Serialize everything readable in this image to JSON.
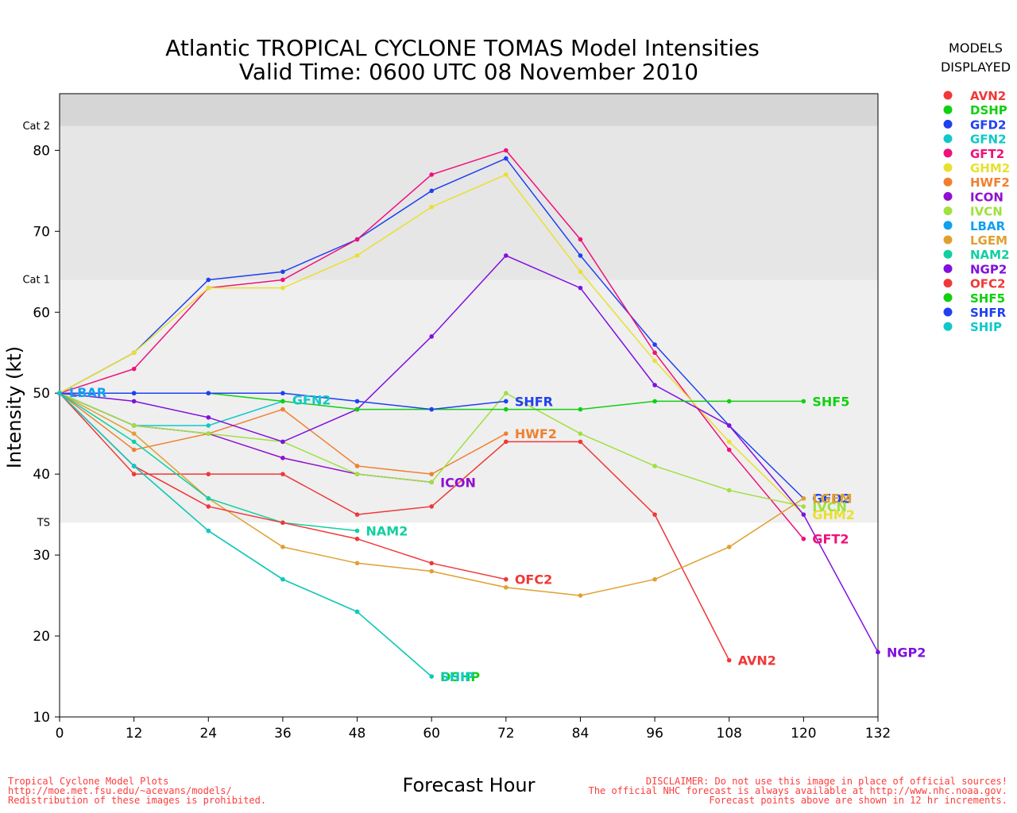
{
  "title_line1": "Atlantic TROPICAL CYCLONE TOMAS Model Intensities",
  "title_line2": "Valid Time: 0600 UTC 08 November 2010",
  "legend_title_1": "MODELS",
  "legend_title_2": "DISPLAYED",
  "footer_left": [
    "Tropical Cyclone Model Plots",
    "http://moe.met.fsu.edu/~acevans/models/",
    "Redistribution of these images is prohibited."
  ],
  "footer_right": [
    "DISCLAIMER: Do not use this image in place of official sources!",
    "The official NHC forecast is always available at http://www.nhc.noaa.gov.",
    "Forecast points above are shown in 12 hr increments."
  ],
  "colors": {
    "band_ts_cat1": "#efefef",
    "band_cat1_cat2": "#e6e6e6",
    "band_cat2": "#d6d6d6",
    "footer": "#ff3b3b"
  },
  "chart_data": {
    "type": "line",
    "xlabel": "Forecast Hour",
    "ylabel": "Intensity (kt)",
    "xlim": [
      0,
      132
    ],
    "ylim": [
      10,
      87
    ],
    "xticks": [
      0,
      12,
      24,
      36,
      48,
      60,
      72,
      84,
      96,
      108,
      120,
      132
    ],
    "yticks": [
      10,
      20,
      30,
      40,
      50,
      60,
      70,
      80
    ],
    "categories": [
      {
        "label": "TS",
        "value": 34
      },
      {
        "label": "Cat 1",
        "value": 64
      },
      {
        "label": "Cat 2",
        "value": 83
      }
    ],
    "series": [
      {
        "name": "AVN2",
        "color": "#f03838",
        "x": [
          0,
          12,
          24,
          36,
          48,
          60,
          72,
          84,
          96,
          108
        ],
        "y": [
          50,
          40,
          40,
          40,
          35,
          36,
          44,
          44,
          35,
          17
        ]
      },
      {
        "name": "DSHP",
        "color": "#10d010",
        "x": [
          0,
          12,
          24,
          36,
          48,
          60
        ],
        "y": [
          50,
          41,
          33,
          27,
          23,
          15
        ]
      },
      {
        "name": "GFD2",
        "color": "#2040f0",
        "x": [
          0,
          12,
          24,
          36,
          48,
          60,
          72,
          84,
          96,
          108,
          120
        ],
        "y": [
          50,
          55,
          64,
          65,
          69,
          75,
          79,
          67,
          56,
          46,
          37
        ]
      },
      {
        "name": "GFN2",
        "color": "#10c8c8",
        "x": [
          0,
          12,
          24,
          36
        ],
        "y": [
          50,
          46,
          46,
          49
        ]
      },
      {
        "name": "GFT2",
        "color": "#f0107a",
        "x": [
          0,
          12,
          24,
          36,
          48,
          60,
          72,
          84,
          96,
          108,
          120
        ],
        "y": [
          50,
          53,
          63,
          64,
          69,
          77,
          80,
          69,
          55,
          43,
          32
        ]
      },
      {
        "name": "GHM2",
        "color": "#e8e030",
        "x": [
          0,
          12,
          24,
          36,
          48,
          60,
          72,
          84,
          96,
          108,
          120
        ],
        "y": [
          50,
          55,
          63,
          63,
          67,
          73,
          77,
          65,
          54,
          44,
          35
        ]
      },
      {
        "name": "HWF2",
        "color": "#f08030",
        "x": [
          0,
          12,
          24,
          36,
          48,
          60,
          72
        ],
        "y": [
          50,
          43,
          45,
          48,
          41,
          40,
          45
        ]
      },
      {
        "name": "ICON",
        "color": "#9010d0",
        "x": [
          0,
          12,
          24,
          36,
          48,
          60
        ],
        "y": [
          50,
          46,
          45,
          42,
          40,
          39
        ]
      },
      {
        "name": "IVCN",
        "color": "#a0e040",
        "x": [
          0,
          12,
          24,
          36,
          48,
          60,
          72,
          84,
          96,
          108,
          120
        ],
        "y": [
          50,
          46,
          45,
          44,
          40,
          39,
          50,
          45,
          41,
          38,
          36
        ]
      },
      {
        "name": "LBAR",
        "color": "#10a0f0",
        "x": [
          0
        ],
        "y": [
          50
        ]
      },
      {
        "name": "LGEM",
        "color": "#e0a030",
        "x": [
          0,
          12,
          24,
          36,
          48,
          60,
          72,
          84,
          96,
          108,
          120
        ],
        "y": [
          50,
          45,
          37,
          31,
          29,
          28,
          26,
          25,
          27,
          31,
          37
        ]
      },
      {
        "name": "NAM2",
        "color": "#10d0a0",
        "x": [
          0,
          12,
          24,
          36,
          48
        ],
        "y": [
          50,
          44,
          37,
          34,
          33
        ]
      },
      {
        "name": "NGP2",
        "color": "#8010e0",
        "x": [
          0,
          12,
          24,
          36,
          48,
          60,
          72,
          84,
          96,
          108,
          120,
          132
        ],
        "y": [
          50,
          49,
          47,
          44,
          48,
          57,
          67,
          63,
          51,
          46,
          35,
          18
        ]
      },
      {
        "name": "OFC2",
        "color": "#f03838",
        "x": [
          0,
          12,
          24,
          36,
          48,
          60,
          72
        ],
        "y": [
          50,
          41,
          36,
          34,
          32,
          29,
          27
        ]
      },
      {
        "name": "SHF5",
        "color": "#10d010",
        "x": [
          0,
          12,
          24,
          36,
          48,
          60,
          72,
          84,
          96,
          108,
          120
        ],
        "y": [
          50,
          50,
          50,
          49,
          48,
          48,
          48,
          48,
          49,
          49,
          49
        ]
      },
      {
        "name": "SHFR",
        "color": "#2040f0",
        "x": [
          0,
          12,
          24,
          36,
          48,
          60,
          72
        ],
        "y": [
          50,
          50,
          50,
          50,
          49,
          48,
          49
        ]
      },
      {
        "name": "SHIP",
        "color": "#10c8c8",
        "x": [
          0,
          12,
          24,
          36,
          48,
          60
        ],
        "y": [
          50,
          41,
          33,
          27,
          23,
          15
        ]
      }
    ]
  }
}
